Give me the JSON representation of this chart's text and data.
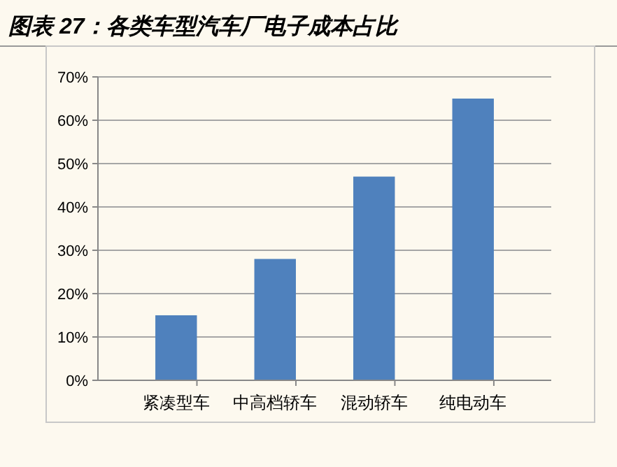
{
  "chart_data": {
    "type": "bar",
    "title": "图表 27：各类车型汽车厂电子成本占比",
    "categories": [
      "紧凑型车",
      "中高档轿车",
      "混动轿车",
      "纯电动车"
    ],
    "values": [
      15,
      28,
      47,
      65
    ],
    "color": "#4f81bd",
    "ylim": [
      0,
      70
    ],
    "yticks": [
      {
        "value": 0,
        "label": "0%"
      },
      {
        "value": 10,
        "label": "10%"
      },
      {
        "value": 20,
        "label": "20%"
      },
      {
        "value": 30,
        "label": "30%"
      },
      {
        "value": 40,
        "label": "40%"
      },
      {
        "value": 50,
        "label": "50%"
      },
      {
        "value": 60,
        "label": "60%"
      },
      {
        "value": 70,
        "label": "70%"
      }
    ],
    "grid": "y"
  }
}
